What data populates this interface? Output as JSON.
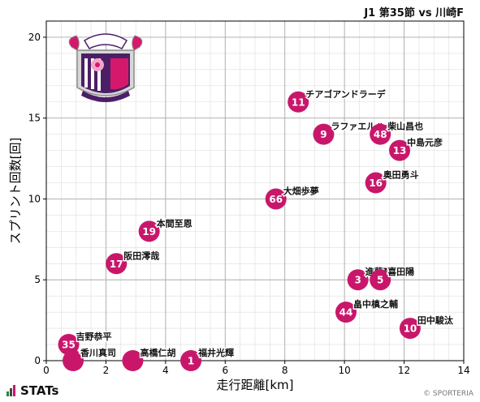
{
  "header": {
    "title": "J1 第35節 vs 川崎F"
  },
  "footer": {
    "brand": "STATs",
    "copyright": "© SPORTERIA"
  },
  "colors": {
    "marker": "#c8176b",
    "grid_major": "#aaaaaa",
    "grid_minor": "#dddddd",
    "axis": "#000000"
  },
  "chart_data": {
    "type": "scatter",
    "xlabel": "走行距離[km]",
    "ylabel": "スプリント回数[回]",
    "xlim": [
      0,
      14
    ],
    "ylim": [
      0,
      21
    ],
    "xticks": [
      0,
      2,
      4,
      6,
      8,
      10,
      12,
      14
    ],
    "yticks": [
      0,
      5,
      10,
      15,
      20
    ],
    "grid": true,
    "points": [
      {
        "number": "11",
        "name": "チアゴアンドラーデ",
        "x": 8.45,
        "y": 16
      },
      {
        "number": "9",
        "name": "ラファエルハットン",
        "x": 9.3,
        "y": 14
      },
      {
        "number": "48",
        "name": "柴山昌也",
        "x": 11.2,
        "y": 14
      },
      {
        "number": "13",
        "name": "中島元彦",
        "x": 11.85,
        "y": 13
      },
      {
        "number": "16",
        "name": "奥田勇斗",
        "x": 11.05,
        "y": 11
      },
      {
        "number": "66",
        "name": "大畑歩夢",
        "x": 7.7,
        "y": 10
      },
      {
        "number": "19",
        "name": "本間至恩",
        "x": 3.45,
        "y": 8
      },
      {
        "number": "17",
        "name": "阪田澪哉",
        "x": 2.35,
        "y": 6
      },
      {
        "number": "3",
        "name": "進藤亮佑",
        "x": 10.45,
        "y": 5
      },
      {
        "number": "5",
        "name": "喜田陽",
        "x": 11.2,
        "y": 5
      },
      {
        "number": "44",
        "name": "畠中槙之輔",
        "x": 10.05,
        "y": 3
      },
      {
        "number": "10",
        "name": "田中駿汰",
        "x": 12.2,
        "y": 2
      },
      {
        "number": "35",
        "name": "吉野恭平",
        "x": 0.75,
        "y": 1
      },
      {
        "number": "",
        "name": "香川真司",
        "x": 0.9,
        "y": 0
      },
      {
        "number": "",
        "name": "高橋仁胡",
        "x": 2.9,
        "y": 0
      },
      {
        "number": "1",
        "name": "福井光輝",
        "x": 4.85,
        "y": 0
      }
    ]
  }
}
